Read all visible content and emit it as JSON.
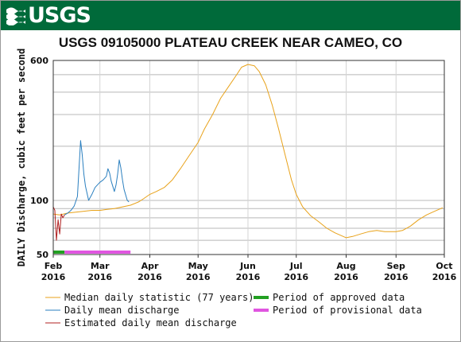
{
  "header": {
    "logo_text": "USGS"
  },
  "chart_data": {
    "type": "line",
    "title": "USGS 09105000 PLATEAU CREEK NEAR CAMEO, CO",
    "ylabel": "DAILY Discharge, cubic feet per second",
    "xlabel": "",
    "y_scale": "log",
    "ylim": [
      50,
      600
    ],
    "y_ticks": [
      {
        "value": 600,
        "label": "600"
      },
      {
        "value": 100,
        "label": "100"
      },
      {
        "value": 50,
        "label": "50"
      }
    ],
    "y_gridlines": [
      60,
      70,
      80,
      90,
      100,
      200,
      300,
      400,
      500,
      600
    ],
    "x_ticks": [
      {
        "date": "2016-02-01",
        "month": "Feb",
        "year": "2016"
      },
      {
        "date": "2016-03-01",
        "month": "Mar",
        "year": "2016"
      },
      {
        "date": "2016-04-01",
        "month": "Apr",
        "year": "2016"
      },
      {
        "date": "2016-05-01",
        "month": "May",
        "year": "2016"
      },
      {
        "date": "2016-06-01",
        "month": "Jun",
        "year": "2016"
      },
      {
        "date": "2016-07-01",
        "month": "Jul",
        "year": "2016"
      },
      {
        "date": "2016-08-01",
        "month": "Aug",
        "year": "2016"
      },
      {
        "date": "2016-09-01",
        "month": "Sep",
        "year": "2016"
      },
      {
        "date": "2016-10-01",
        "month": "Oct",
        "year": "2016"
      }
    ],
    "grid": true,
    "legend_position": "bottom",
    "series": [
      {
        "name": "Median daily statistic (77 years)",
        "color": "#e8a21a",
        "points": [
          [
            "2016-02-01",
            84
          ],
          [
            "2016-02-05",
            83
          ],
          [
            "2016-02-10",
            85
          ],
          [
            "2016-02-15",
            86
          ],
          [
            "2016-02-20",
            87
          ],
          [
            "2016-02-25",
            88
          ],
          [
            "2016-03-01",
            88
          ],
          [
            "2016-03-05",
            89
          ],
          [
            "2016-03-10",
            90
          ],
          [
            "2016-03-15",
            92
          ],
          [
            "2016-03-20",
            94
          ],
          [
            "2016-03-25",
            98
          ],
          [
            "2016-03-28",
            102
          ],
          [
            "2016-04-01",
            108
          ],
          [
            "2016-04-05",
            112
          ],
          [
            "2016-04-10",
            118
          ],
          [
            "2016-04-15",
            130
          ],
          [
            "2016-04-20",
            150
          ],
          [
            "2016-04-25",
            175
          ],
          [
            "2016-05-01",
            210
          ],
          [
            "2016-05-05",
            250
          ],
          [
            "2016-05-10",
            300
          ],
          [
            "2016-05-15",
            370
          ],
          [
            "2016-05-20",
            430
          ],
          [
            "2016-05-25",
            500
          ],
          [
            "2016-05-28",
            550
          ],
          [
            "2016-06-01",
            570
          ],
          [
            "2016-06-05",
            560
          ],
          [
            "2016-06-08",
            520
          ],
          [
            "2016-06-12",
            440
          ],
          [
            "2016-06-16",
            340
          ],
          [
            "2016-06-20",
            250
          ],
          [
            "2016-06-24",
            180
          ],
          [
            "2016-06-28",
            130
          ],
          [
            "2016-07-01",
            108
          ],
          [
            "2016-07-05",
            92
          ],
          [
            "2016-07-10",
            82
          ],
          [
            "2016-07-15",
            76
          ],
          [
            "2016-07-20",
            70
          ],
          [
            "2016-07-25",
            66
          ],
          [
            "2016-08-01",
            62
          ],
          [
            "2016-08-05",
            63
          ],
          [
            "2016-08-10",
            65
          ],
          [
            "2016-08-15",
            67
          ],
          [
            "2016-08-20",
            68
          ],
          [
            "2016-08-25",
            67
          ],
          [
            "2016-09-01",
            67
          ],
          [
            "2016-09-05",
            68
          ],
          [
            "2016-09-10",
            72
          ],
          [
            "2016-09-15",
            78
          ],
          [
            "2016-09-20",
            83
          ],
          [
            "2016-09-25",
            87
          ],
          [
            "2016-09-30",
            91
          ]
        ]
      },
      {
        "name": "Daily mean discharge",
        "color": "#2a7fbf",
        "points": [
          [
            "2016-02-08",
            83
          ],
          [
            "2016-02-10",
            85
          ],
          [
            "2016-02-12",
            88
          ],
          [
            "2016-02-14",
            93
          ],
          [
            "2016-02-16",
            105
          ],
          [
            "2016-02-17",
            150
          ],
          [
            "2016-02-18",
            215
          ],
          [
            "2016-02-19",
            180
          ],
          [
            "2016-02-20",
            140
          ],
          [
            "2016-02-21",
            120
          ],
          [
            "2016-02-23",
            100
          ],
          [
            "2016-02-25",
            108
          ],
          [
            "2016-02-27",
            118
          ],
          [
            "2016-03-01",
            126
          ],
          [
            "2016-03-03",
            130
          ],
          [
            "2016-03-05",
            136
          ],
          [
            "2016-03-06",
            150
          ],
          [
            "2016-03-07",
            142
          ],
          [
            "2016-03-08",
            128
          ],
          [
            "2016-03-10",
            112
          ],
          [
            "2016-03-11",
            122
          ],
          [
            "2016-03-12",
            140
          ],
          [
            "2016-03-13",
            168
          ],
          [
            "2016-03-14",
            152
          ],
          [
            "2016-03-15",
            130
          ],
          [
            "2016-03-16",
            115
          ],
          [
            "2016-03-18",
            100
          ],
          [
            "2016-03-19",
            98
          ]
        ]
      },
      {
        "name": "Estimated daily mean discharge",
        "color": "#b02020",
        "points": [
          [
            "2016-02-01",
            92
          ],
          [
            "2016-02-02",
            88
          ],
          [
            "2016-02-03",
            60
          ],
          [
            "2016-02-04",
            78
          ],
          [
            "2016-02-05",
            65
          ],
          [
            "2016-02-06",
            84
          ],
          [
            "2016-02-07",
            80
          ],
          [
            "2016-02-08",
            83
          ]
        ]
      }
    ],
    "periods": [
      {
        "name": "Period of approved data",
        "color": "#22a022",
        "start": "2016-02-01",
        "end": "2016-02-08"
      },
      {
        "name": "Period of provisional data",
        "color": "#e055e0",
        "start": "2016-02-08",
        "end": "2016-03-20"
      }
    ]
  }
}
